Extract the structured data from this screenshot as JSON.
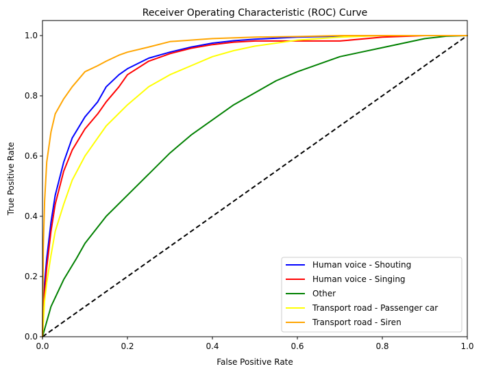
{
  "chart_data": {
    "type": "line",
    "title": "Receiver Operating Characteristic (ROC) Curve",
    "xlabel": "False Positive Rate",
    "ylabel": "True Positive Rate",
    "xlim": [
      0,
      1
    ],
    "ylim": [
      0,
      1.05
    ],
    "xticks": [
      0.0,
      0.2,
      0.4,
      0.6,
      0.8,
      1.0
    ],
    "yticks": [
      0.0,
      0.2,
      0.4,
      0.6,
      0.8,
      1.0
    ],
    "grid": false,
    "legend_position": "lower-right",
    "series": [
      {
        "name": "Human voice - Shouting",
        "color": "#0000ff",
        "x": [
          0,
          0.005,
          0.01,
          0.02,
          0.03,
          0.05,
          0.07,
          0.1,
          0.13,
          0.15,
          0.18,
          0.2,
          0.25,
          0.3,
          0.35,
          0.4,
          0.45,
          0.5,
          0.6,
          0.7,
          0.8,
          0.9,
          1.0
        ],
        "y": [
          0,
          0.18,
          0.26,
          0.38,
          0.47,
          0.58,
          0.66,
          0.73,
          0.78,
          0.83,
          0.87,
          0.89,
          0.925,
          0.945,
          0.962,
          0.975,
          0.983,
          0.988,
          0.995,
          0.998,
          1.0,
          1.0,
          1.0
        ]
      },
      {
        "name": "Human voice - Singing",
        "color": "#ff0000",
        "x": [
          0,
          0.005,
          0.01,
          0.02,
          0.03,
          0.05,
          0.07,
          0.1,
          0.13,
          0.15,
          0.18,
          0.2,
          0.25,
          0.3,
          0.35,
          0.4,
          0.45,
          0.5,
          0.6,
          0.7,
          0.8,
          0.9,
          1.0
        ],
        "y": [
          0,
          0.15,
          0.23,
          0.35,
          0.44,
          0.55,
          0.62,
          0.69,
          0.74,
          0.78,
          0.83,
          0.87,
          0.915,
          0.94,
          0.958,
          0.97,
          0.978,
          0.982,
          0.982,
          0.982,
          0.995,
          1.0,
          1.0
        ]
      },
      {
        "name": "Other",
        "color": "#008000",
        "x": [
          0,
          0.01,
          0.02,
          0.03,
          0.05,
          0.08,
          0.1,
          0.15,
          0.2,
          0.25,
          0.3,
          0.35,
          0.4,
          0.45,
          0.5,
          0.55,
          0.6,
          0.65,
          0.7,
          0.75,
          0.8,
          0.85,
          0.9,
          0.95,
          1.0
        ],
        "y": [
          0,
          0.05,
          0.1,
          0.13,
          0.19,
          0.26,
          0.31,
          0.4,
          0.47,
          0.54,
          0.61,
          0.67,
          0.72,
          0.77,
          0.81,
          0.85,
          0.88,
          0.905,
          0.93,
          0.945,
          0.96,
          0.975,
          0.99,
          0.998,
          1.0
        ]
      },
      {
        "name": "Transport road - Passenger car",
        "color": "#ffff00",
        "x": [
          0,
          0.005,
          0.01,
          0.02,
          0.03,
          0.05,
          0.07,
          0.1,
          0.13,
          0.15,
          0.2,
          0.25,
          0.3,
          0.35,
          0.4,
          0.45,
          0.5,
          0.55,
          0.6,
          0.7,
          0.8,
          0.9,
          1.0
        ],
        "y": [
          0,
          0.12,
          0.18,
          0.27,
          0.35,
          0.44,
          0.52,
          0.6,
          0.66,
          0.7,
          0.77,
          0.83,
          0.87,
          0.9,
          0.93,
          0.95,
          0.965,
          0.975,
          0.985,
          0.995,
          1.0,
          1.0,
          1.0
        ]
      },
      {
        "name": "Transport road - Siren",
        "color": "#ffa500",
        "x": [
          0,
          0.002,
          0.005,
          0.01,
          0.02,
          0.03,
          0.05,
          0.07,
          0.1,
          0.13,
          0.15,
          0.18,
          0.2,
          0.25,
          0.3,
          0.4,
          0.5,
          0.6,
          0.7,
          0.8,
          0.9,
          1.0
        ],
        "y": [
          0,
          0.3,
          0.45,
          0.58,
          0.68,
          0.74,
          0.79,
          0.83,
          0.88,
          0.9,
          0.915,
          0.935,
          0.945,
          0.962,
          0.98,
          0.99,
          0.995,
          0.997,
          1.0,
          1.0,
          1.0,
          1.0
        ]
      }
    ],
    "reference_line": {
      "x": [
        0,
        1
      ],
      "y": [
        0,
        1
      ],
      "color": "#000000",
      "style": "dashed"
    }
  }
}
